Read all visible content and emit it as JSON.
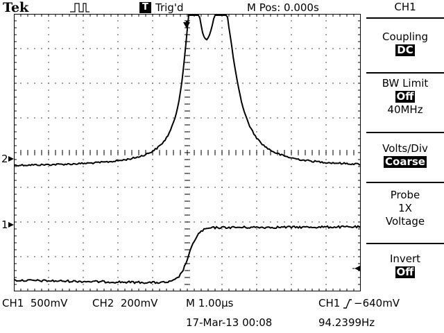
{
  "header": {
    "brand": "Tek",
    "trigger_icon": "pulse-icon",
    "trigger_status_badge": "T",
    "trigger_status": "Trig'd",
    "horizontal_position": "M Pos: 0.000s"
  },
  "menu": {
    "channel": "CH1",
    "coupling": {
      "label": "Coupling",
      "value": "DC"
    },
    "bw_limit": {
      "label": "BW Limit",
      "value": "Off",
      "extra": "40MHz"
    },
    "volts_div": {
      "label": "Volts/Div",
      "value": "Coarse"
    },
    "probe": {
      "label": "Probe",
      "value": "1X",
      "extra": "Voltage"
    },
    "invert": {
      "label": "Invert",
      "value": "Off"
    }
  },
  "markers": {
    "ch2": "2",
    "ch1": "1"
  },
  "footer": {
    "ch1_scale": "CH1  500mV",
    "ch2_scale": "CH2  200mV",
    "timebase": "M 1.00μs",
    "trigger": "CH1",
    "trigger_level": "−640mV",
    "date": "17-Mar-13 00:08",
    "frequency": "94.2399Hz"
  },
  "colors": {
    "background": "#ffffff",
    "trace": "#000000",
    "grid": "#000000"
  }
}
